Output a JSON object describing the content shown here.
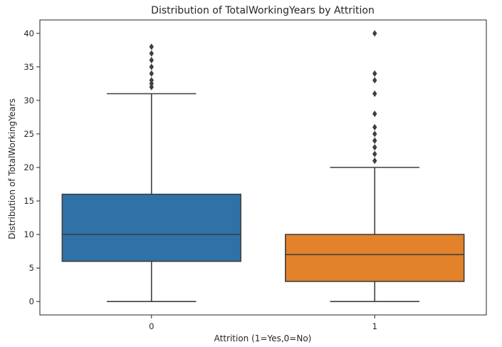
{
  "chart_data": {
    "type": "box",
    "title": "Distribution of TotalWorkingYears by Attrition",
    "xlabel": "Attrition (1=Yes,0=No)",
    "ylabel": "Distribution of TotalWorkingYears",
    "ylim": [
      -2,
      42
    ],
    "yticks": [
      0,
      5,
      10,
      15,
      20,
      25,
      30,
      35,
      40
    ],
    "ytick_labels": [
      "0",
      "5",
      "10",
      "15",
      "20",
      "25",
      "30",
      "35",
      "40"
    ],
    "categories": [
      "0",
      "1"
    ],
    "grid": false,
    "boxes": [
      {
        "category": "0",
        "whisker_low": 0,
        "q1": 6,
        "median": 10,
        "q3": 16,
        "whisker_high": 31,
        "outliers": [
          32,
          32.5,
          33,
          34,
          35,
          36,
          37,
          38
        ],
        "color": "#2f72a8"
      },
      {
        "category": "1",
        "whisker_low": 0,
        "q1": 3,
        "median": 7,
        "q3": 10,
        "whisker_high": 20,
        "outliers": [
          21,
          22,
          23,
          24,
          25,
          26,
          28,
          31,
          33,
          34,
          40
        ],
        "color": "#e2822a"
      }
    ]
  }
}
